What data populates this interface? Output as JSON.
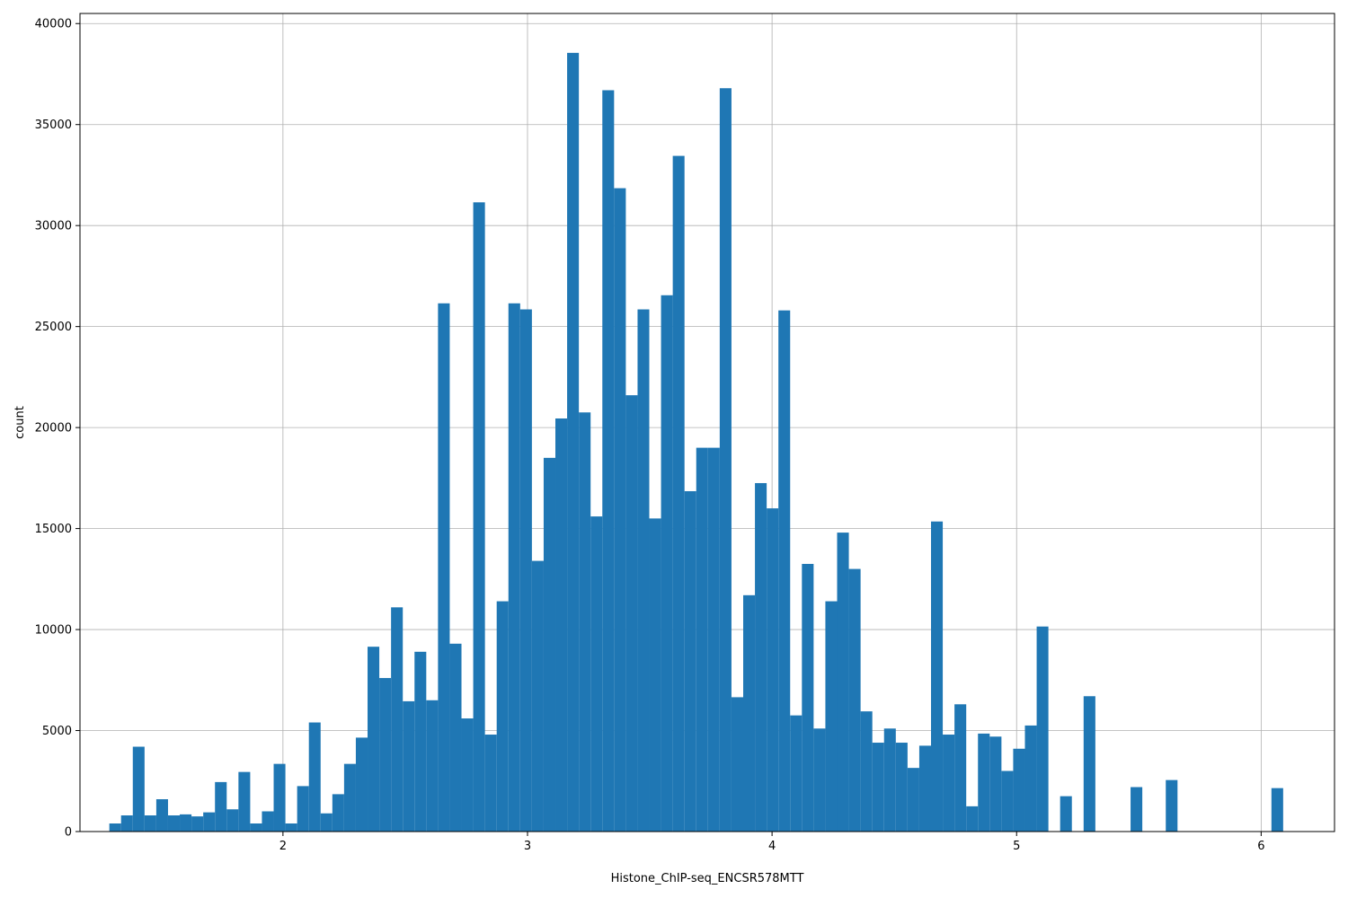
{
  "chart_data": {
    "type": "bar",
    "title": "",
    "xlabel": "Histone_ChIP-seq_ENCSR578MTT",
    "ylabel": "count",
    "xlim": [
      1.17,
      6.3
    ],
    "ylim": [
      0,
      40500
    ],
    "grid": true,
    "bar_color": "#1f77b4",
    "grid_color": "#b0b0b0",
    "x_ticks": [
      {
        "value": 2,
        "label": "2"
      },
      {
        "value": 3,
        "label": "3"
      },
      {
        "value": 4,
        "label": "4"
      },
      {
        "value": 5,
        "label": "5"
      },
      {
        "value": 6,
        "label": "6"
      }
    ],
    "y_ticks": [
      {
        "value": 0,
        "label": "0"
      },
      {
        "value": 5000,
        "label": "5000"
      },
      {
        "value": 10000,
        "label": "10000"
      },
      {
        "value": 15000,
        "label": "15000"
      },
      {
        "value": 20000,
        "label": "20000"
      },
      {
        "value": 25000,
        "label": "25000"
      },
      {
        "value": 30000,
        "label": "30000"
      },
      {
        "value": 35000,
        "label": "35000"
      },
      {
        "value": 40000,
        "label": "40000"
      }
    ],
    "bin_start": 1.29,
    "bin_width": 0.048,
    "values": [
      400,
      800,
      4200,
      800,
      1600,
      800,
      850,
      750,
      950,
      2450,
      1100,
      2950,
      400,
      1000,
      3350,
      400,
      2250,
      5400,
      900,
      1850,
      3350,
      4650,
      9150,
      7600,
      11100,
      6450,
      8900,
      6500,
      26150,
      9300,
      5600,
      31150,
      4800,
      11400,
      26150,
      25850,
      13400,
      18500,
      20450,
      38550,
      20750,
      15600,
      36700,
      31850,
      21600,
      25850,
      15500,
      26550,
      33450,
      16850,
      19000,
      19000,
      36800,
      6650,
      11700,
      17250,
      16000,
      25800,
      5750,
      13250,
      5100,
      11400,
      14800,
      13000,
      5950,
      4400,
      5100,
      4400,
      3150,
      4250,
      15350,
      4800,
      6300,
      1250,
      4850,
      4700,
      3000,
      4100,
      5250,
      10150,
      0,
      1750,
      0,
      6700,
      0,
      0,
      0,
      2200,
      0,
      0,
      2550,
      0,
      0,
      0,
      0,
      0,
      0,
      0,
      0,
      2150
    ]
  }
}
